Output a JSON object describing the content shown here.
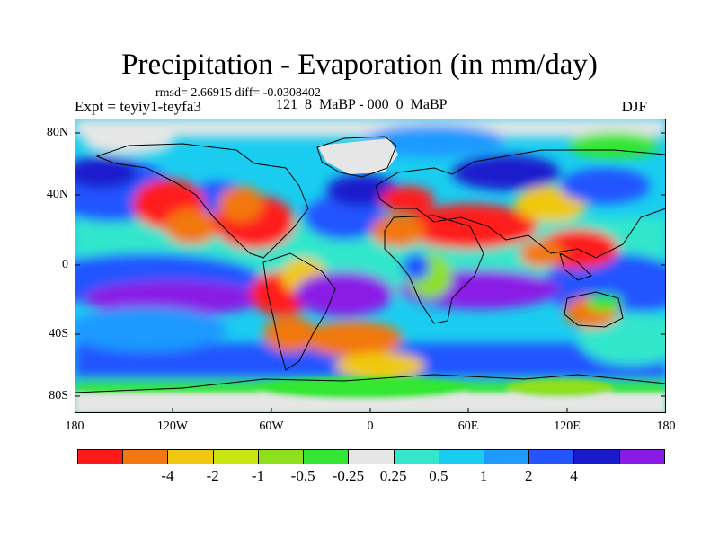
{
  "title": "Precipitation - Evaporation (in mm/day)",
  "stats": "rmsd= 2.66915 diff= -0.0308402",
  "left_label": "Expt = teyiy1-teyfa3",
  "center_label": "121_8_MaBP - 000_0_MaBP",
  "right_label": "DJF",
  "y_ticks": [
    "80N",
    "40N",
    "0",
    "40S",
    "80S"
  ],
  "x_ticks": [
    "180",
    "120W",
    "60W",
    "0",
    "60E",
    "120E",
    "180"
  ],
  "colorbar": {
    "colors": [
      "#ff1a1a",
      "#f27711",
      "#f0c80f",
      "#c9e611",
      "#8ee01c",
      "#33e633",
      "#e6e6e6",
      "#33e6cc",
      "#1acdf0",
      "#1f9aff",
      "#2255ff",
      "#1a1acd",
      "#8a1ae6"
    ],
    "labels": [
      "-4",
      "-2",
      "-1",
      "-0.5",
      "-0.25",
      "0.25",
      "0.5",
      "1",
      "2",
      "4"
    ]
  },
  "colors": {
    "ocean_wet": "#2255ff",
    "land_dry": "#ff1a1a",
    "polar": "#e6e6e6"
  }
}
